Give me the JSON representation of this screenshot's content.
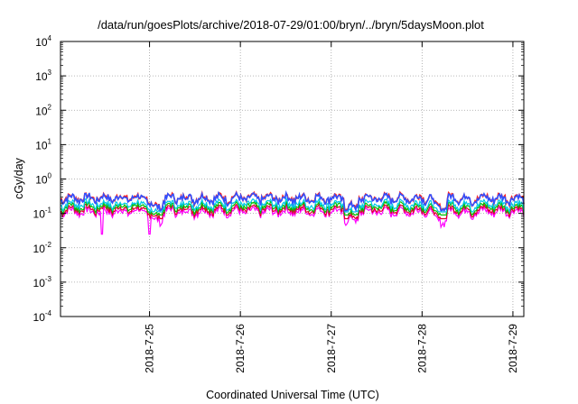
{
  "chart_data": {
    "type": "line",
    "title": "/data/run/goesPlots/archive/2018-07-29/01:00/bryn/../bryn/5daysMoon.plot",
    "xlabel": "Coordinated Universal Time (UTC)",
    "ylabel": "cGy/day",
    "yscale": "log",
    "ylim": [
      0.0001,
      10000
    ],
    "y_ticks": [
      {
        "base": "10",
        "exp": "-4"
      },
      {
        "base": "10",
        "exp": "-3"
      },
      {
        "base": "10",
        "exp": "-2"
      },
      {
        "base": "10",
        "exp": "-1"
      },
      {
        "base": "10",
        "exp": "0"
      },
      {
        "base": "10",
        "exp": "1"
      },
      {
        "base": "10",
        "exp": "2"
      },
      {
        "base": "10",
        "exp": "3"
      },
      {
        "base": "10",
        "exp": "4"
      }
    ],
    "x_ticks": [
      "2018-7-25",
      "2018-7-26",
      "2018-7-27",
      "2018-7-28",
      "2018-7-29"
    ],
    "xlim_days": [
      -0.98,
      4.12
    ],
    "grid": true,
    "colors": [
      "#ff00ff",
      "#e0002a",
      "#00c000",
      "#00c8e8",
      "#ff2020",
      "#3050ff"
    ],
    "series": [
      {
        "color": "#ff00ff",
        "base": 0.115,
        "min": 0.025,
        "max": 0.17
      },
      {
        "color": "#e0002a",
        "base": 0.135,
        "min": 0.07,
        "max": 0.2
      },
      {
        "color": "#00c000",
        "base": 0.16,
        "min": 0.09,
        "max": 0.24
      },
      {
        "color": "#00c8e8",
        "base": 0.19,
        "min": 0.11,
        "max": 0.28
      },
      {
        "color": "#ff2020",
        "base": 0.29,
        "min": 0.13,
        "max": 0.46
      },
      {
        "color": "#3050ff",
        "base": 0.28,
        "min": 0.12,
        "max": 0.45
      }
    ]
  }
}
